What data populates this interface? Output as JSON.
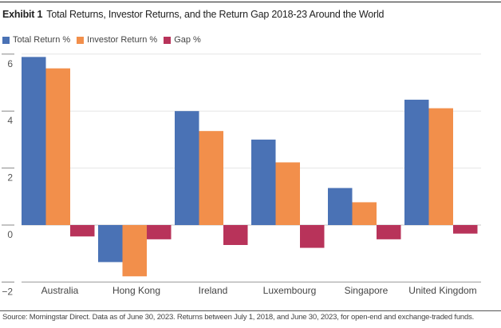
{
  "header": {
    "exhibit_label": "Exhibit 1",
    "title": "Total Returns, Investor Returns, and the Return Gap 2018-23 Around the World"
  },
  "footer": {
    "source": "Source: Morningstar Direct. Data as of June 30, 2023. Returns between July 1, 2018, and June 30, 2023, for open-end and exchange-traded funds."
  },
  "chart_data": {
    "type": "bar",
    "title": "Total Returns, Investor Returns, and the Return Gap 2018-23 Around the World",
    "xlabel": "",
    "ylabel": "",
    "ylim": [
      -2,
      6
    ],
    "yticks": [
      -2,
      0,
      2,
      4,
      6
    ],
    "ytick_labels": [
      "−2",
      "0",
      "2",
      "4",
      "6"
    ],
    "grid": true,
    "legend_position": "top-left",
    "categories": [
      "Australia",
      "Hong Kong",
      "Ireland",
      "Luxembourg",
      "Singapore",
      "United Kingdom"
    ],
    "series": [
      {
        "name": "Total Return %",
        "color": "#4a72b5",
        "values": [
          5.9,
          -1.3,
          4.0,
          3.0,
          1.3,
          4.4
        ]
      },
      {
        "name": "Investor Return %",
        "color": "#f28f4b",
        "values": [
          5.5,
          -1.8,
          3.3,
          2.2,
          0.8,
          4.1
        ]
      },
      {
        "name": "Gap %",
        "color": "#b8335a",
        "values": [
          -0.4,
          -0.5,
          -0.7,
          -0.8,
          -0.5,
          -0.3
        ]
      }
    ]
  }
}
